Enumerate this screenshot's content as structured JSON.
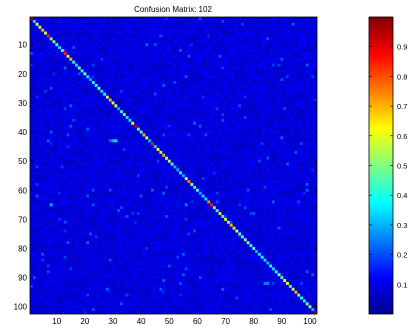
{
  "chart_data": {
    "type": "heatmap",
    "title": "Confusion Matrix: 102",
    "xlabel": "",
    "ylabel": "",
    "size": 102,
    "xlim": [
      1,
      102
    ],
    "ylim": [
      1,
      102
    ],
    "x_ticks": [
      10,
      20,
      30,
      40,
      50,
      60,
      70,
      80,
      90,
      100
    ],
    "y_ticks": [
      10,
      20,
      30,
      40,
      50,
      60,
      70,
      80,
      90,
      100
    ],
    "colorbar_ticks": [
      0.1,
      0.2,
      0.3,
      0.4,
      0.5,
      0.6,
      0.7,
      0.8,
      0.9
    ],
    "colorbar_range": [
      0,
      1
    ],
    "colormap": "jet",
    "diagonal_values": [
      0.95,
      0.35,
      0.6,
      0.55,
      0.7,
      0.6,
      0.85,
      0.5,
      0.5,
      0.45,
      0.35,
      0.45,
      0.85,
      0.55,
      0.7,
      0.4,
      0.35,
      0.5,
      0.4,
      0.5,
      0.35,
      0.3,
      0.4,
      0.4,
      0.5,
      0.35,
      0.4,
      0.55,
      0.7,
      0.6,
      0.6,
      0.3,
      0.4,
      0.5,
      0.35,
      0.35,
      0.6,
      0.95,
      0.5,
      0.45,
      0.7,
      0.6,
      0.3,
      0.85,
      0.35,
      0.6,
      0.55,
      0.7,
      0.6,
      0.55,
      0.45,
      0.3,
      0.3,
      0.4,
      0.3,
      0.6,
      0.75,
      0.55,
      0.4,
      0.45,
      0.3,
      0.35,
      0.35,
      0.75,
      0.85,
      0.5,
      0.4,
      0.65,
      0.4,
      0.6,
      0.55,
      0.7,
      0.55,
      0.6,
      0.45,
      0.45,
      0.5,
      0.5,
      0.4,
      0.45,
      0.3,
      0.35,
      0.4,
      0.35,
      0.3,
      0.4,
      0.35,
      0.4,
      0.5,
      0.45,
      0.6,
      0.6,
      0.45,
      0.55,
      0.7,
      0.5,
      0.4,
      0.4,
      0.5,
      0.55,
      0.3,
      0.95
    ],
    "off_diagonal": [
      {
        "row": 43,
        "col": 31,
        "value": 0.35
      },
      {
        "row": 43,
        "col": 30,
        "value": 0.3
      },
      {
        "row": 65,
        "col": 8,
        "value": 0.3
      },
      {
        "row": 65,
        "col": 56,
        "value": 0.25
      },
      {
        "row": 15,
        "col": 90,
        "value": 0.2
      },
      {
        "row": 92,
        "col": 84,
        "value": 0.25
      },
      {
        "row": 92,
        "col": 85,
        "value": 0.25
      },
      {
        "row": 90,
        "col": 2,
        "value": 0.2
      },
      {
        "row": 86,
        "col": 50,
        "value": 0.2
      },
      {
        "row": 75,
        "col": 22,
        "value": 0.2
      },
      {
        "row": 22,
        "col": 90,
        "value": 0.2
      },
      {
        "row": 68,
        "col": 80,
        "value": 0.2
      }
    ]
  }
}
